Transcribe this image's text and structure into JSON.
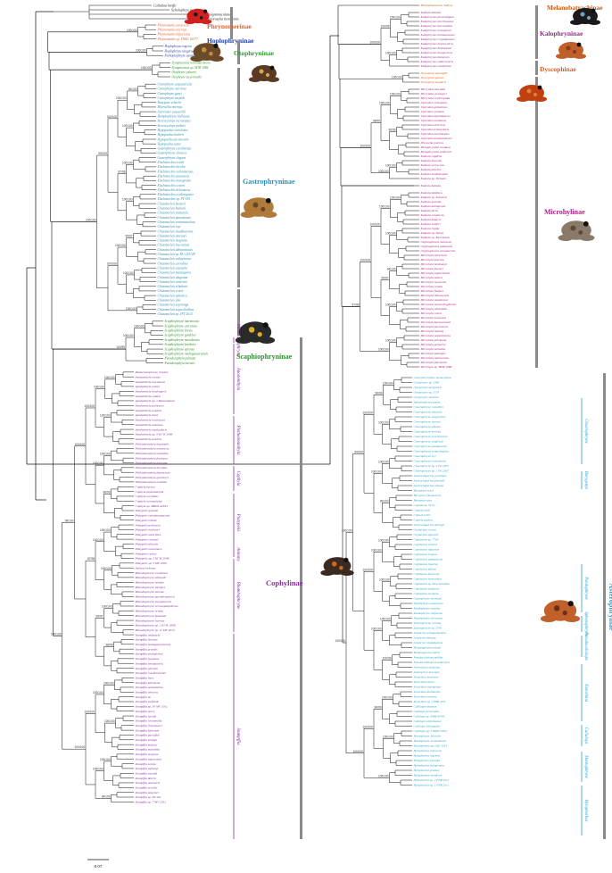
{
  "colors": {
    "phrynomerinae": "#e0602a",
    "hoplophryninae": "#1f3f9f",
    "otophryninae": "#2f9a2f",
    "gastrophryninae": "#2c8fb6",
    "scaphiophryninae": "#2f8f2f",
    "cophylinae": "#8a2fa0",
    "melanobatrachinae": "#c05a10",
    "kalophryninae": "#9a2a8a",
    "dyscophinae": "#e05a1a",
    "microhylinae": "#b0208a",
    "asterophryinae": "#2aa2cc",
    "outgroup": "#222222",
    "branch": "#111111"
  },
  "subfamilies": {
    "phrynomerinae": "Phrynomerinae",
    "hoplophryninae": "Hoplophryninae",
    "otophryninae": "Otophryninae",
    "gastrophryninae": "Gastrophryninae",
    "scaphiophryninae": "Scaphiophryninae",
    "cophylinae": "Cophylinae",
    "melanobatrachinae": "Melanobatrachinae",
    "kalophryninae": "Kalophryninae",
    "dyscophinae": "Dyscophinae",
    "microhylinae": "Microhylinae",
    "asterophryinae": "Asterophryinae"
  },
  "genera_cophylinae": [
    "Madecassophryne",
    "Anodonthyla",
    "Plethodontohyla",
    "Cophyla",
    "Platypelis",
    "Anilany",
    "Rhombophryne",
    "Stumpffia"
  ],
  "genera_asterophryinae": [
    "Choerophryne",
    "Barygenys",
    "Paedophryne",
    "Sphenophryne",
    "Pseudocallulops",
    "Xenorhina",
    "Callulops",
    "Mantophryne",
    "Hylophorbus"
  ],
  "outgroup_labels": [
    "Callulina kreffti",
    "Scholophrys posiliensis",
    "Petropedetes migramaculatus",
    "Pelorosylia hemicimis"
  ],
  "labels_left": [
    "Phrynomantis annectens",
    "Phrynomantis microps",
    "Phrynomantis bifasciatus",
    "Phrynomantis sp. TNHC 61077",
    "Hoplophryne rogersi",
    "Hoplophryne uluguruensis",
    "Parhoplophryne usambarica",
    "Synapturanus mirandaribeiroi",
    "Synapturanus sp. MTR 1084",
    "Otophryne pyburni",
    "Otophryne steyermarki",
    "Ctenophryne aequatorialis",
    "Ctenophryne aterrima",
    "Ctenophryne geayi",
    "Ctenophryne carpish",
    "Dasypops schirchi",
    "Myersiella microps",
    "Arcovomer passarellii",
    "Hamptophryne boliviana",
    "Stereocyclops incrassatus",
    "Stereocyclops parkeri",
    "Hypopachus variolosus",
    "Hypopachus barberi",
    "Hypopachus pictiventris",
    "Hypopachus ustus",
    "Gastrophryne carolinensis",
    "Gastrophryne olivacea",
    "Gastrophryne elegans",
    "Elachistocleis ovalis",
    "Elachistocleis bicolor",
    "Elachistocleis surinamensis",
    "Elachistocleis piauiensis",
    "Elachistocleis matogrosso",
    "Elachistocleis cesarii",
    "Elachistocleis helianneae",
    "Elachistocleis erythrogaster",
    "Elachistocleis sp. PT 615",
    "Chiasmocleis bassleri",
    "Chiasmocleis hudsoni",
    "Chiasmocleis tridactyla",
    "Chiasmocleis panamensis",
    "Chiasmocleis ventrimaculata",
    "Chiasmocleis royi",
    "Chiasmocleis shudikarensis",
    "Chiasmocleis antenori",
    "Chiasmocleis magnova",
    "Chiasmocleis leucosticta",
    "Chiasmocleis albopunctata",
    "Chiasmocleis sp. KU 215728",
    "Chiasmocleis avilapiresae",
    "Chiasmocleis carvalhoi",
    "Chiasmocleis capixaba",
    "Chiasmocleis mantiqueira",
    "Chiasmocleis alagoana",
    "Chiasmocleis cordeiroi",
    "Chiasmocleis schubarti",
    "Chiasmocleis crucis",
    "Chiasmocleis atlantica",
    "Chiasmocleis jimi",
    "Chiasmocleis sapiranga",
    "Chiasmocleis supercilialbus",
    "Chiasmocleis sp. JFT 2014",
    "Scaphiophryne marmorata",
    "Scaphiophryne calcarata",
    "Scaphiophryne brevis",
    "Scaphiophryne gottlebei",
    "Scaphiophryne menabensis",
    "Scaphiophryne boribory",
    "Scaphiophryne spinosa",
    "Scaphiophryne madagascariensis",
    "Paradoxophyla palmata",
    "Paradoxophyla tiarano"
  ],
  "labels_cophyl": [
    "Madecassophryne truebae",
    "Anodonthyla rouxae",
    "Anodonthyla moramora",
    "Anodonthyla emilei",
    "Anodonthyla boulengerii",
    "Anodonthyla vallani",
    "Anodonthyla sp. 1 Ranomafana",
    "Anodonthyla pollicaris",
    "Anodonthyla jeanbai",
    "Anodonthyla theoi",
    "Anodonthyla hutchisoni",
    "Anodonthyla montana",
    "Anodonthyla nigrigularis",
    "Anodonthyla sp. 3 KCW 2008",
    "Anodonthyla pulchra",
    "Plethodontohyla inguinalis",
    "Plethodontohyla notosticta",
    "Plethodontohyla mihanika",
    "Plethodontohyla fonetana",
    "Plethodontohyla tuberata",
    "Plethodontohyla brevipes",
    "Plethodontohyla bipunctata",
    "Plethodontohyla guentheri",
    "Plethodontohyla ocellata",
    "Cophyla berara",
    "Cophyla phyllodactyla",
    "Cophyla occultans",
    "Cophyla noromalalae",
    "Cophyla sp. MRSN A2615",
    "Platypelis grandis",
    "Platypelis tsaratananaensis",
    "Platypelis milloti",
    "Platypelis pollicaris",
    "Platypelis barbouri",
    "Platypelis tuberifera",
    "Platypelis cowanii",
    "Platypelis alticola",
    "Platypelis mavomavo",
    "Platypelis ravica",
    "Platypelis sp. 2 KCW 2008",
    "Platypelis sp. 5 MV 2009",
    "Anilany helenae",
    "Rhombophryne coudreaui",
    "Rhombophryne alluaudi",
    "Rhombophryne testudo",
    "Rhombophryne laevipes",
    "Rhombophryne minuta",
    "Rhombophryne guentherpetersi",
    "Rhombophryne mangabensis",
    "Rhombophryne serratopalpebrosa",
    "Rhombophryne ornata",
    "Rhombophryne botabota",
    "Rhombophryne vaventy",
    "Rhombophryne sp. 2 KCW 2008",
    "Rhombophryne sp. 11 MV 2013",
    "Stumpffia tridactyla",
    "Stumpffia helenae",
    "Stumpffia madagascariensis",
    "Stumpffia grandis",
    "Stumpffia psologlossa",
    "Stumpffia pygmaea",
    "Stumpffia tetradactyla",
    "Stumpffia gimmeli",
    "Stumpffia roseifemoralis",
    "Stumpffia hara",
    "Stumpffia kibomena",
    "Stumpffia analamaina",
    "Stumpffia obscura",
    "Stumpffia be",
    "Stumpffia staffordi",
    "Stumpffia sp. 30 MV 2012",
    "Stumpffia miery",
    "Stumpffia larinki",
    "Stumpffia contumelia",
    "Stumpffia froschaueri",
    "Stumpffia fontenoti",
    "Stumpffia garraffoi",
    "Stumpffia bishopi",
    "Stumpffia makira",
    "Stumpffia mamitika",
    "Stumpffia megsoni",
    "Stumpffia nigrorubra",
    "Stumpffia sorata",
    "Stumpffia valbergi",
    "Stumpffia yanniki",
    "Stumpffia dolchi",
    "Stumpffia jeannoeli",
    "Stumpffia achillei",
    "Stumpffia angeluci",
    "Stumpffia sp. PT 261",
    "Stumpffia sp. 7 MV 2012"
  ],
  "labels_right": [
    "Melanobatrachus indicus",
    "Kaloula baleata",
    "Kalophrynus pleurostigma",
    "Kalophrynus interlineatus",
    "Kalophrynus intermedius",
    "Kalophrynus orangensis",
    "Kalophrynus honhaanensis",
    "Kalophrynus cryptophonus",
    "Kalophrynus heterochirus",
    "Kalophrynus limbooliati",
    "Kalophrynus bunguranus",
    "Kalophrynus baluensis",
    "Kalophrynus subterrestris",
    "Kalophrynus calciphilus",
    "Dyscophus antongilii",
    "Dyscophus guineti",
    "Dyscophus insularis",
    "Micryletta inornata",
    "Micryletta steinegeri",
    "Micryletta erythropoda",
    "Uperodon variegatus",
    "Uperodon globulosus",
    "Uperodon systoma",
    "Uperodon taprobanicus",
    "Uperodon montanus",
    "Uperodon obscurus",
    "Uperodon triangularis",
    "Uperodon mormoratus",
    "Uperodon anamalaiensis",
    "Phrynella pulchra",
    "Metaphrynella sundana",
    "Metaphrynella pollicaris",
    "Kaloula rugifera",
    "Kaloula borealis",
    "Kaloula verrucosa",
    "Kaloula pulchra",
    "Kaloula mediolineata",
    "Kaloula sp. Vietnam",
    "Kaloula baleata",
    "Kaloula latidisca",
    "Kaloula sp. Sulawesi",
    "Kaloula aureata",
    "Kaloula kalingensis",
    "Kaloula picta",
    "Kaloula conjuncta",
    "Kaloula kokacii",
    "Kaloula walteri",
    "Kaloula rigida",
    "Kaloula sp. Panay",
    "Kaloula sp. East Luzon",
    "Glyphoglossus molossus",
    "Glyphoglossus guttulatus",
    "Glyphoglossus yunnanensis",
    "Microhyla annectens",
    "Microhyla pulchra",
    "Microhyla berdmorei",
    "Microhyla fowleri",
    "Microhyla superciliaris",
    "Microhyla butleri",
    "Microhyla heymonsi",
    "Microhyla ornata",
    "Microhyla fissipes",
    "Microhyla okinavensis",
    "Microhyla mukhlesuri",
    "Microhyla mymensinghensis",
    "Microhyla mihintalei",
    "Microhyla rubra",
    "Microhyla zeylanica",
    "Microhyla karunaratnei",
    "Microhyla borneensis",
    "Microhyla malang",
    "Microhyla nepenthicola",
    "Microhyla petrigena",
    "Microhyla perparva",
    "Microhyla achatina",
    "Microhyla palmipes",
    "Microhyla marmorata",
    "Microhyla pineticola",
    "Microhyla sp. BDR 1688"
  ],
  "labels_aster": [
    "Gastrophrynoides immaculatus",
    "Oreophryne sp. 2300",
    "Oreophryne atrigularis",
    "Oreophryne sp. 5733",
    "Oreophryne unicolor",
    "Aphantophryne pansa",
    "Choerophryne rostellifer",
    "Choerophryne alpestris",
    "Choerophryne longirostris",
    "Choerophryne burtoni",
    "Choerophryne allisoni",
    "Choerophryne murrita",
    "Choerophryne gracilirostris",
    "Choerophryne siegfriedi",
    "Choerophryne pandanicola",
    "Choerophryne sanguinopicta",
    "Choerophryne fryi",
    "Choerophryne exclamitans",
    "Choerophryne sp. 3 FK 2007",
    "Choerophryne sp. 1 FK 2007",
    "Austrochaperina gracilipes",
    "Austrochaperina pluvialis",
    "Austrochaperina robusta",
    "Barygenys exsul",
    "Barygenys flavigularis",
    "Barygenys atra",
    "Copiula sp. 3210",
    "Copiula obsti",
    "Copiula tyleri",
    "Copiula pipiens",
    "Austrochaperina derongo",
    "Oxydactyla crassa",
    "Oxydactyla alpestris",
    "Cophixalus sp. 7763",
    "Cophixalus ornatus",
    "Cophixalus infacetus",
    "Cophixalus exiguus",
    "Cophixalus sphagnicola",
    "Cophixalus riparius",
    "Cophixalus balbus",
    "Cophixalus humicola",
    "Cophixalus verecundus",
    "Cophixalus sp. Pass Stonefila",
    "Cophixalus neglectus",
    "Cophixalus aenigma",
    "Genyophryne thomsoni",
    "Paedophryne amauensis",
    "Paedophryne oyatabu",
    "Paedophryne swiftorum",
    "Paedophryne verrucosa",
    "Sphenophryne cornuta",
    "Sphenophryne sp. 2541",
    "Liophryne schlaginhaufeni",
    "Liophryne dentata",
    "Liophryne rhododactyla",
    "Metamagnusia marani",
    "Metamagnusia slateri",
    "Pseudocallulops pullifer",
    "Pseudocallulops eurydactylus",
    "Asterophrys turpicola",
    "Asterophrys leucopus",
    "Xenorhina bouwensi",
    "Xenorhina obesa",
    "Xenorhina oxycephala",
    "Xenorhina lanthanites",
    "Xenorhina rostrata",
    "Xenorhina sp. 1 FNR 2011",
    "Callulops robustus",
    "Callulops personatus",
    "Callulops sp. ZMB 63504",
    "Callulops wilhelmanus",
    "Callulops stictogaster",
    "Callulops sp. 5 ZMB 75052",
    "Mantophryne lateralis",
    "Mantophryne louisiadensis",
    "Mantophryne sp. LAE 2014",
    "Hylophorbus rufescens",
    "Hylophorbus nigrinus",
    "Hylophorbus picoides",
    "Hylophorbus tetraphonus",
    "Hylophorbus proekes",
    "Hylophorbus wondiwoi",
    "Hylophorbus sp. 2 FNR 2011",
    "Hylophorbus sp. 1 FNR 2011"
  ],
  "support_value": "100/100",
  "support_alt": [
    "98/99",
    "95/97",
    "99/100",
    "96/99",
    "94/100",
    "87/98",
    "100/99"
  ],
  "scale_label": "0.07"
}
